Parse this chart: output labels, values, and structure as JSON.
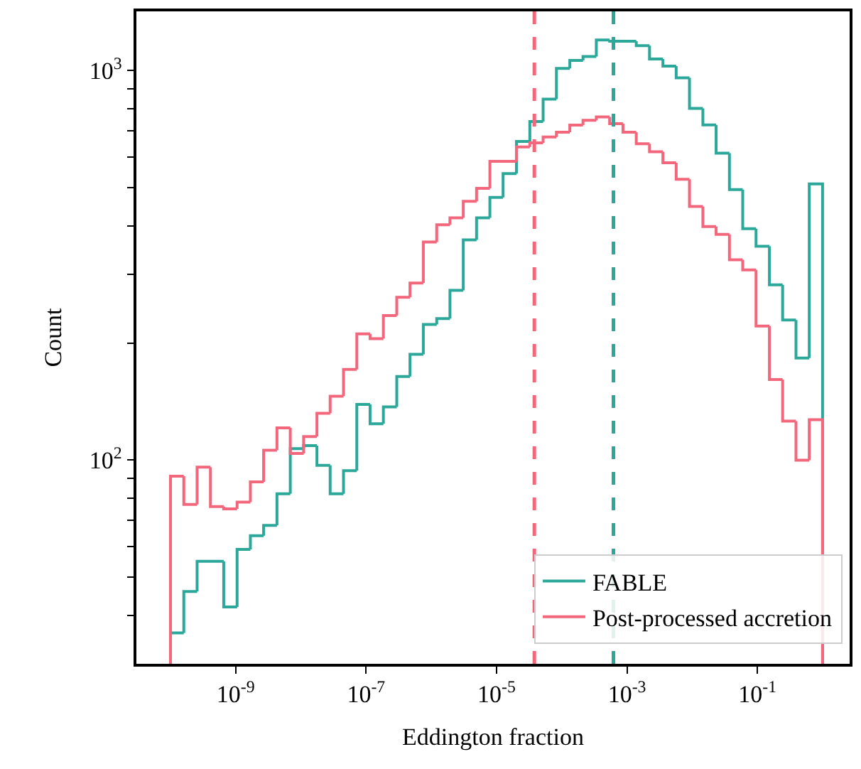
{
  "chart_data": {
    "type": "histogram",
    "xlabel": "Eddington fraction",
    "ylabel": "Count",
    "bins": [
      1e-10,
      1.6e-10,
      2.56e-10,
      4.1e-10,
      6.55e-10,
      1.05e-09,
      1.68e-09,
      2.68e-09,
      4.29e-09,
      6.87e-09,
      1.1e-08,
      1.76e-08,
      2.81e-08,
      4.5e-08,
      7.2e-08,
      1.15e-07,
      1.84e-07,
      2.95e-07,
      4.71e-07,
      7.54e-07,
      1.21e-06,
      1.93e-06,
      3.09e-06,
      4.94e-06,
      7.91e-06,
      1.26e-05,
      2.02e-05,
      3.24e-05,
      5.18e-05,
      8.29e-05,
      0.000133,
      0.000212,
      0.000339,
      0.000543,
      0.000869,
      0.00139,
      0.00222,
      0.00356,
      0.00569,
      0.0091,
      0.0146,
      0.0233,
      0.0373,
      0.0596,
      0.0954,
      0.153,
      0.244,
      0.391,
      0.625,
      1
    ],
    "series": [
      {
        "name": "FABLE",
        "color": "#2ca89a",
        "values": [
          36,
          46,
          55,
          55,
          42,
          59,
          64,
          68,
          82,
          107,
          109,
          97,
          82,
          94,
          139,
          124,
          137,
          164,
          187,
          223,
          231,
          273,
          368,
          419,
          473,
          544,
          658,
          740,
          845,
          1014,
          1063,
          1088,
          1199,
          1190,
          1190,
          1159,
          1072,
          1028,
          959,
          800,
          726,
          614,
          495,
          393,
          354,
          282,
          229,
          183,
          512
        ]
      },
      {
        "name": "Post-processed accretion",
        "color": "#f2677c",
        "values": [
          91,
          77,
          96,
          76,
          75,
          78,
          88,
          106,
          121,
          104,
          115,
          132,
          146,
          171,
          211,
          205,
          235,
          262,
          285,
          363,
          402,
          419,
          462,
          499,
          585,
          585,
          637,
          653,
          676,
          695,
          725,
          746,
          761,
          731,
          695,
          649,
          619,
          580,
          526,
          448,
          398,
          380,
          327,
          308,
          221,
          161,
          126,
          100,
          127
        ]
      }
    ],
    "ref_lines": [
      {
        "axis": "x",
        "value": 3.8e-05,
        "color": "#f2677c",
        "line_style": "dashed"
      },
      {
        "axis": "x",
        "value": 0.00062,
        "color": "#2ca89a",
        "line_style": "dashed"
      }
    ],
    "log": "xy",
    "xlim": [
      3e-11,
      2.6
    ],
    "xticks": [
      {
        "value": 1e-09,
        "label": "10$^{-9}$"
      },
      {
        "value": 1e-07,
        "label": "10$^{-7}$"
      },
      {
        "value": 1e-05,
        "label": "10$^{-5}$"
      },
      {
        "value": 0.001,
        "label": "10$^{-3}$"
      },
      {
        "value": 0.1,
        "label": "10$^{-1}$"
      }
    ],
    "ylim": [
      30,
      1420
    ],
    "yticks": [
      {
        "value": 40,
        "label": null
      },
      {
        "value": 50,
        "label": null
      },
      {
        "value": 60,
        "label": null
      },
      {
        "value": 70,
        "label": null
      },
      {
        "value": 80,
        "label": null
      },
      {
        "value": 90,
        "label": null
      },
      {
        "value": 100,
        "label": "10$^{2}$"
      },
      {
        "value": 200,
        "label": null
      },
      {
        "value": 300,
        "label": null
      },
      {
        "value": 400,
        "label": null
      },
      {
        "value": 500,
        "label": null
      },
      {
        "value": 600,
        "label": null
      },
      {
        "value": 700,
        "label": null
      },
      {
        "value": 800,
        "label": null
      },
      {
        "value": 900,
        "label": null
      },
      {
        "value": 1000,
        "label": "10$^{3}$"
      }
    ],
    "grid": false,
    "legend": "bottom right"
  }
}
